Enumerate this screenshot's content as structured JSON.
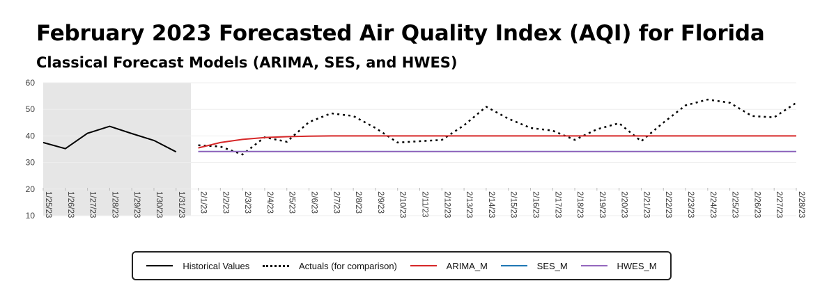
{
  "title": "February 2023 Forecasted Air Quality Index (AQI) for Florida",
  "subtitle": "Classical Forecast Models (ARIMA, SES, and HWES)",
  "colors": {
    "historical": "#000000",
    "actuals": "#000000",
    "arima": "#d62728",
    "ses": "#1f77b4",
    "hwes": "#9467bd",
    "shade": "#e6e6e6",
    "grid": "#eeeeee",
    "axis_text": "#444444"
  },
  "legend": [
    {
      "key": "historical",
      "label": "Historical Values",
      "dash": "solid"
    },
    {
      "key": "actuals",
      "label": "Actuals (for comparison)",
      "dash": "dotted"
    },
    {
      "key": "arima",
      "label": "ARIMA_M",
      "dash": "solid"
    },
    {
      "key": "ses",
      "label": "SES_M",
      "dash": "solid"
    },
    {
      "key": "hwes",
      "label": "HWES_M",
      "dash": "solid"
    }
  ],
  "chart_data": {
    "type": "line",
    "x": [
      "1/25/23",
      "1/26/23",
      "1/27/23",
      "1/28/23",
      "1/29/23",
      "1/30/23",
      "1/31/23",
      "2/1/23",
      "2/2/23",
      "2/3/23",
      "2/4/23",
      "2/5/23",
      "2/6/23",
      "2/7/23",
      "2/8/23",
      "2/9/23",
      "2/10/23",
      "2/11/23",
      "2/12/23",
      "2/13/23",
      "2/14/23",
      "2/15/23",
      "2/16/23",
      "2/17/23",
      "2/18/23",
      "2/19/23",
      "2/20/23",
      "2/21/23",
      "2/22/23",
      "2/23/23",
      "2/24/23",
      "2/25/23",
      "2/26/23",
      "2/27/23",
      "2/28/23"
    ],
    "ylim": [
      10,
      60
    ],
    "yticks": [
      10,
      20,
      30,
      40,
      50,
      60
    ],
    "grid": true,
    "legend_position": "bottom",
    "shaded_region": [
      "1/25/23",
      "1/31/23"
    ],
    "series": [
      {
        "name": "Historical Values",
        "key": "historical",
        "style": "solid",
        "x": [
          "1/25/23",
          "1/26/23",
          "1/27/23",
          "1/28/23",
          "1/29/23",
          "1/30/23",
          "1/31/23"
        ],
        "values": [
          37.5,
          35.2,
          41.0,
          43.6,
          40.9,
          38.3,
          34.0
        ]
      },
      {
        "name": "Actuals (for comparison)",
        "key": "actuals",
        "style": "dotted",
        "x": [
          "2/1/23",
          "2/2/23",
          "2/3/23",
          "2/4/23",
          "2/5/23",
          "2/6/23",
          "2/7/23",
          "2/8/23",
          "2/9/23",
          "2/10/23",
          "2/11/23",
          "2/12/23",
          "2/13/23",
          "2/14/23",
          "2/15/23",
          "2/16/23",
          "2/17/23",
          "2/18/23",
          "2/19/23",
          "2/20/23",
          "2/21/23",
          "2/22/23",
          "2/23/23",
          "2/24/23",
          "2/25/23",
          "2/26/23",
          "2/27/23",
          "2/28/23"
        ],
        "values": [
          36.5,
          36.0,
          33.0,
          39.5,
          37.8,
          45.2,
          48.5,
          47.5,
          43.0,
          37.5,
          38.0,
          38.5,
          44.0,
          51.0,
          46.5,
          43.0,
          42.0,
          38.5,
          42.5,
          44.8,
          38.0,
          45.0,
          51.5,
          53.7,
          52.5,
          47.5,
          47.0,
          52.5
        ]
      },
      {
        "name": "ARIMA_M",
        "key": "arima",
        "style": "solid",
        "x": [
          "2/1/23",
          "2/2/23",
          "2/3/23",
          "2/4/23",
          "2/5/23",
          "2/6/23",
          "2/7/23",
          "2/8/23",
          "2/9/23",
          "2/10/23",
          "2/11/23",
          "2/12/23",
          "2/13/23",
          "2/14/23",
          "2/15/23",
          "2/16/23",
          "2/17/23",
          "2/18/23",
          "2/19/23",
          "2/20/23",
          "2/21/23",
          "2/22/23",
          "2/23/23",
          "2/24/23",
          "2/25/23",
          "2/26/23",
          "2/27/23",
          "2/28/23"
        ],
        "values": [
          35.5,
          37.5,
          38.7,
          39.4,
          39.7,
          39.9,
          40.0,
          40.0,
          40.0,
          40.0,
          40.0,
          40.0,
          40.0,
          40.0,
          40.0,
          40.0,
          40.0,
          40.0,
          40.0,
          40.0,
          40.0,
          40.0,
          40.0,
          40.0,
          40.0,
          40.0,
          40.0,
          40.0
        ]
      },
      {
        "name": "SES_M",
        "key": "ses",
        "style": "solid",
        "x": [
          "2/1/23",
          "2/28/23"
        ],
        "values": [
          34.1,
          34.1
        ]
      },
      {
        "name": "HWES_M",
        "key": "hwes",
        "style": "solid",
        "x": [
          "2/1/23",
          "2/28/23"
        ],
        "values": [
          34.1,
          34.1
        ]
      }
    ]
  }
}
